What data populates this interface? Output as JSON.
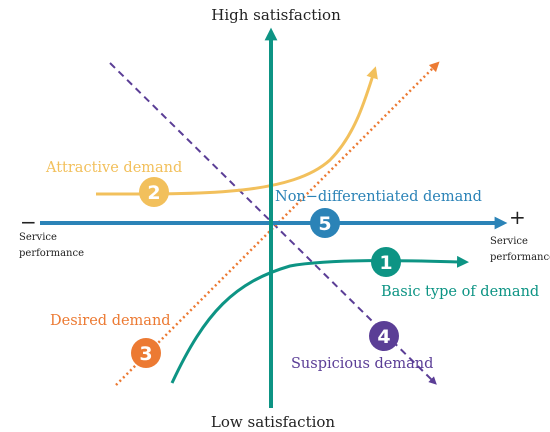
{
  "axes": {
    "top_label": "High satisfaction",
    "bottom_label": "Low satisfaction",
    "minus_sign": "−",
    "plus_sign": "+",
    "left_label_line1": "Service",
    "left_label_line2": "performance",
    "right_label_line1": "Service",
    "right_label_line2": "performance",
    "horizontal_color": "#2b83b7",
    "vertical_color": "#0d9484"
  },
  "demands": [
    {
      "number": "1",
      "label": "Basic type of demand",
      "color": "#0d9484"
    },
    {
      "number": "2",
      "label": "Attractive demand",
      "color": "#f2c05c"
    },
    {
      "number": "3",
      "label": "Desired demand",
      "color": "#ec7a33"
    },
    {
      "number": "4",
      "label": "Suspicious demand",
      "color": "#5b3e96"
    },
    {
      "number": "5",
      "label": "Non−differentiated demand",
      "color": "#2b83b7"
    }
  ]
}
